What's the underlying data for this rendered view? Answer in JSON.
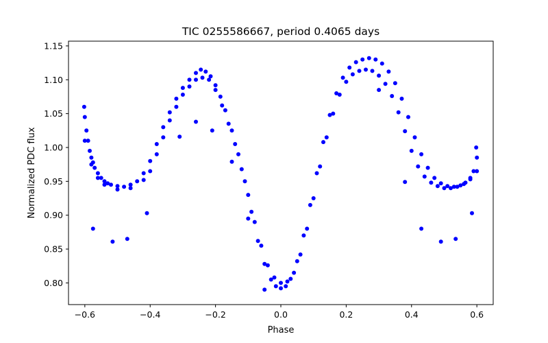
{
  "chart_data": {
    "type": "scatter",
    "title": "TIC 0255586667, period 0.4065 days",
    "xlabel": "Phase",
    "ylabel": "Normalized PDC flux",
    "xlim": [
      -0.65,
      0.65
    ],
    "ylim": [
      0.768,
      1.157
    ],
    "x_ticks": [
      -0.6,
      -0.4,
      -0.2,
      0.0,
      0.2,
      0.4,
      0.6
    ],
    "x_tick_labels": [
      "−0.6",
      "−0.4",
      "−0.2",
      "0.0",
      "0.2",
      "0.4",
      "0.6"
    ],
    "y_ticks": [
      0.8,
      0.85,
      0.9,
      0.95,
      1.0,
      1.05,
      1.1,
      1.15
    ],
    "y_tick_labels": [
      "0.80",
      "0.85",
      "0.90",
      "0.95",
      "1.00",
      "1.05",
      "1.10",
      "1.15"
    ],
    "grid": false,
    "legend": "none",
    "marker_color": "#0000ff",
    "series": [
      {
        "points": [
          [
            -0.6,
            1.045
          ],
          [
            -0.595,
            1.025
          ],
          [
            -0.59,
            1.01
          ],
          [
            -0.585,
            0.995
          ],
          [
            -0.58,
            0.985
          ],
          [
            -0.575,
            0.978
          ],
          [
            -0.57,
            0.97
          ],
          [
            -0.56,
            0.962
          ],
          [
            -0.55,
            0.955
          ],
          [
            -0.54,
            0.95
          ],
          [
            -0.53,
            0.947
          ],
          [
            -0.52,
            0.945
          ],
          [
            -0.5,
            0.943
          ],
          [
            -0.48,
            0.942
          ],
          [
            -0.46,
            0.945
          ],
          [
            -0.44,
            0.95
          ],
          [
            -0.42,
            0.962
          ],
          [
            -0.4,
            0.98
          ],
          [
            -0.38,
            1.005
          ],
          [
            -0.36,
            1.03
          ],
          [
            -0.34,
            1.052
          ],
          [
            -0.32,
            1.072
          ],
          [
            -0.3,
            1.088
          ],
          [
            -0.28,
            1.1
          ],
          [
            -0.26,
            1.11
          ],
          [
            -0.245,
            1.115
          ],
          [
            -0.23,
            1.112
          ],
          [
            -0.215,
            1.105
          ],
          [
            -0.2,
            1.092
          ],
          [
            -0.185,
            1.075
          ],
          [
            -0.17,
            1.055
          ],
          [
            -0.15,
            1.025
          ],
          [
            -0.13,
            0.99
          ],
          [
            -0.11,
            0.95
          ],
          [
            -0.09,
            0.905
          ],
          [
            -0.07,
            0.862
          ],
          [
            -0.05,
            0.828
          ],
          [
            -0.03,
            0.805
          ],
          [
            -0.015,
            0.795
          ],
          [
            0.0,
            0.792
          ],
          [
            0.015,
            0.795
          ],
          [
            0.03,
            0.806
          ],
          [
            0.05,
            0.832
          ],
          [
            0.07,
            0.87
          ],
          [
            0.09,
            0.915
          ],
          [
            0.11,
            0.962
          ],
          [
            0.13,
            1.008
          ],
          [
            0.15,
            1.048
          ],
          [
            0.17,
            1.08
          ],
          [
            0.19,
            1.103
          ],
          [
            0.21,
            1.118
          ],
          [
            0.23,
            1.126
          ],
          [
            0.25,
            1.13
          ],
          [
            0.27,
            1.132
          ],
          [
            0.29,
            1.13
          ],
          [
            0.31,
            1.124
          ],
          [
            0.33,
            1.112
          ],
          [
            0.35,
            1.095
          ],
          [
            0.37,
            1.072
          ],
          [
            0.39,
            1.045
          ],
          [
            0.41,
            1.015
          ],
          [
            0.43,
            0.99
          ],
          [
            0.45,
            0.97
          ],
          [
            0.47,
            0.955
          ],
          [
            0.49,
            0.947
          ],
          [
            0.51,
            0.943
          ],
          [
            0.53,
            0.942
          ],
          [
            0.55,
            0.944
          ],
          [
            0.565,
            0.948
          ],
          [
            0.58,
            0.955
          ],
          [
            0.59,
            0.965
          ],
          [
            0.6,
            0.985
          ]
        ]
      },
      {
        "points": [
          [
            -0.6,
            1.01
          ],
          [
            -0.58,
            0.975
          ],
          [
            -0.56,
            0.955
          ],
          [
            -0.54,
            0.945
          ],
          [
            -0.5,
            0.938
          ],
          [
            -0.46,
            0.94
          ],
          [
            -0.42,
            0.952
          ],
          [
            -0.4,
            0.965
          ],
          [
            -0.38,
            0.99
          ],
          [
            -0.36,
            1.015
          ],
          [
            -0.34,
            1.04
          ],
          [
            -0.32,
            1.06
          ],
          [
            -0.3,
            1.078
          ],
          [
            -0.28,
            1.09
          ],
          [
            -0.26,
            1.1
          ],
          [
            -0.24,
            1.103
          ],
          [
            -0.22,
            1.1
          ],
          [
            -0.2,
            1.085
          ],
          [
            -0.18,
            1.062
          ],
          [
            -0.16,
            1.035
          ],
          [
            -0.14,
            1.005
          ],
          [
            -0.12,
            0.968
          ],
          [
            -0.1,
            0.93
          ],
          [
            -0.08,
            0.89
          ],
          [
            -0.06,
            0.855
          ],
          [
            -0.04,
            0.826
          ],
          [
            -0.02,
            0.808
          ],
          [
            0.0,
            0.8
          ],
          [
            0.02,
            0.802
          ],
          [
            0.04,
            0.815
          ],
          [
            0.06,
            0.842
          ],
          [
            0.08,
            0.88
          ],
          [
            0.1,
            0.925
          ],
          [
            0.12,
            0.972
          ],
          [
            0.14,
            1.015
          ],
          [
            0.16,
            1.05
          ],
          [
            0.18,
            1.078
          ],
          [
            0.2,
            1.097
          ],
          [
            0.22,
            1.108
          ],
          [
            0.24,
            1.113
          ],
          [
            0.26,
            1.115
          ],
          [
            0.28,
            1.113
          ],
          [
            0.3,
            1.106
          ],
          [
            0.32,
            1.094
          ],
          [
            0.34,
            1.076
          ],
          [
            0.36,
            1.052
          ],
          [
            0.38,
            1.024
          ],
          [
            0.4,
            0.995
          ],
          [
            0.42,
            0.972
          ],
          [
            0.44,
            0.957
          ],
          [
            0.46,
            0.948
          ],
          [
            0.48,
            0.943
          ],
          [
            0.5,
            0.94
          ],
          [
            0.52,
            0.94
          ],
          [
            0.54,
            0.942
          ],
          [
            0.56,
            0.946
          ],
          [
            0.58,
            0.953
          ],
          [
            0.6,
            0.965
          ]
        ]
      },
      {
        "points": [
          [
            -0.575,
            0.88
          ],
          [
            -0.515,
            0.861
          ],
          [
            -0.47,
            0.865
          ],
          [
            -0.41,
            0.903
          ],
          [
            -0.31,
            1.016
          ],
          [
            -0.26,
            1.038
          ],
          [
            -0.21,
            1.025
          ],
          [
            -0.15,
            0.979
          ],
          [
            -0.1,
            0.895
          ],
          [
            -0.05,
            0.79
          ],
          [
            0.3,
            1.085
          ],
          [
            0.38,
            0.949
          ],
          [
            0.43,
            0.88
          ],
          [
            0.49,
            0.861
          ],
          [
            0.535,
            0.865
          ],
          [
            0.585,
            0.903
          ],
          [
            -0.602,
            1.06
          ],
          [
            0.598,
            1.0
          ]
        ]
      }
    ]
  }
}
